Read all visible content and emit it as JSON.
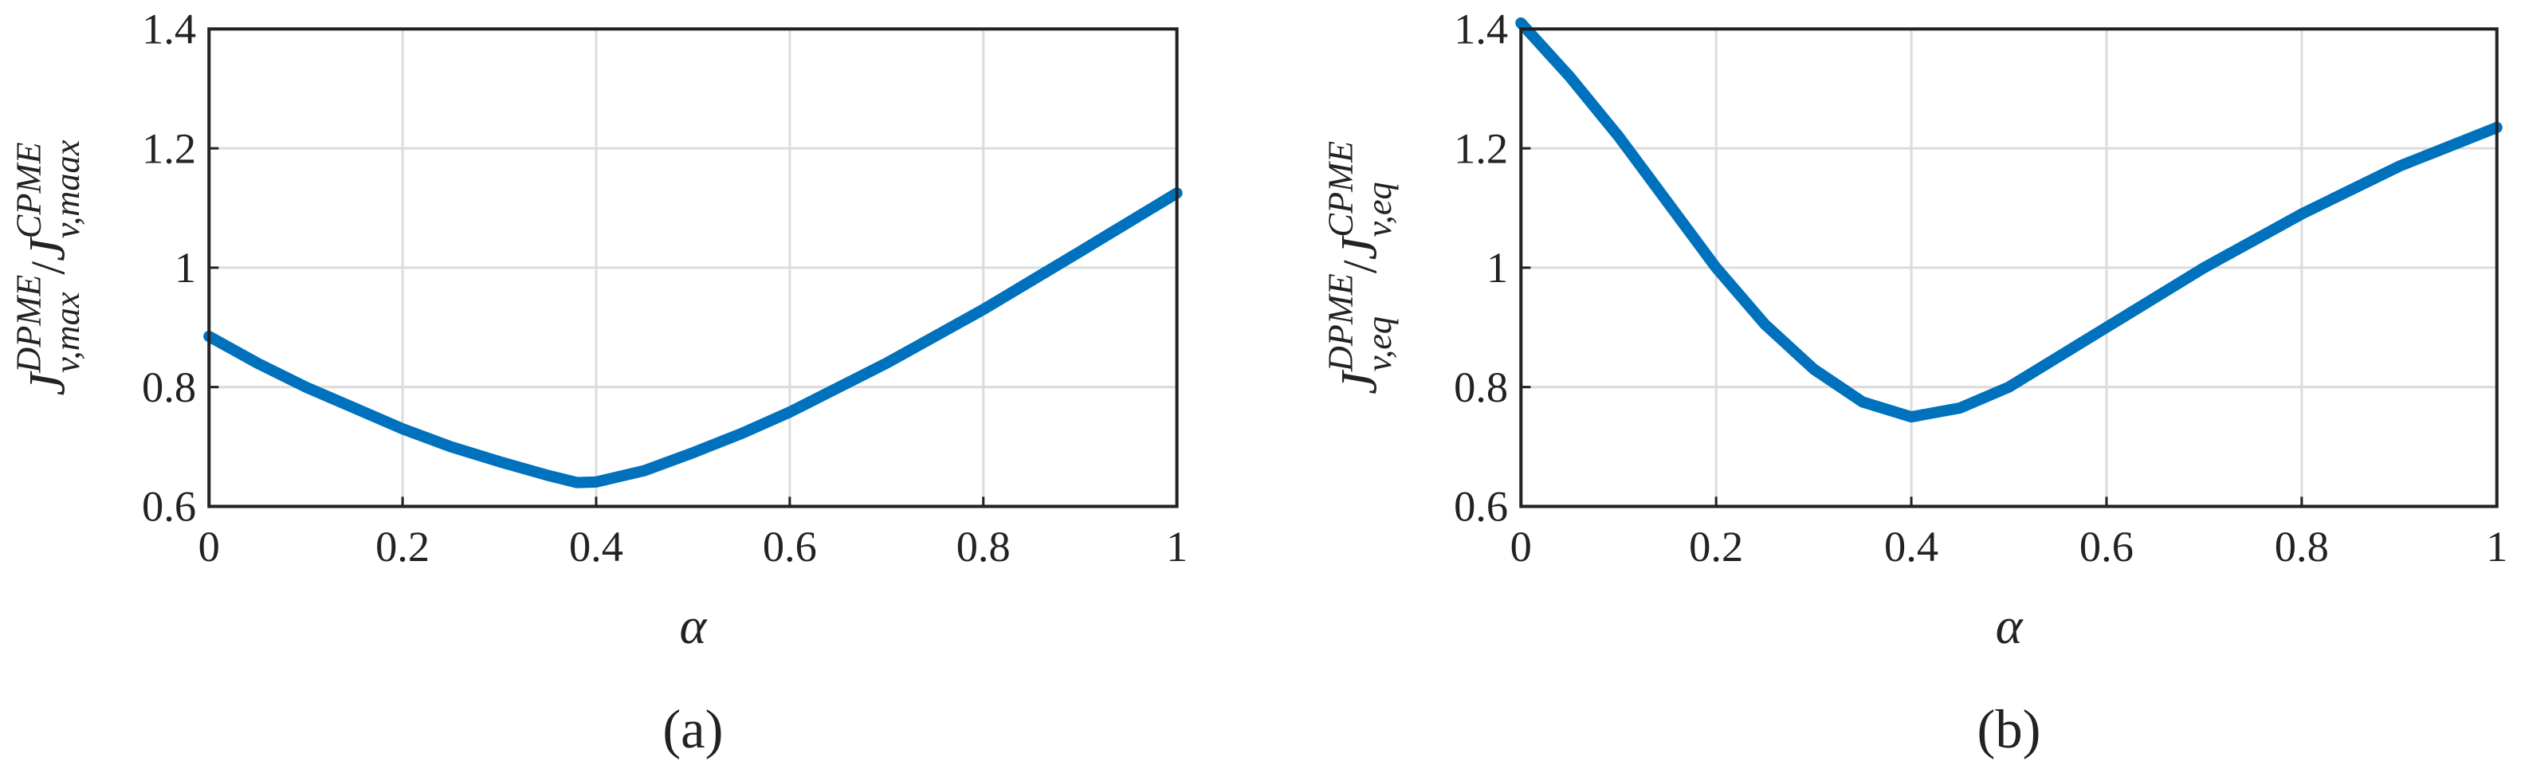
{
  "chart_data": [
    {
      "type": "line",
      "caption": "(a)",
      "xlabel": "α",
      "ylabel": [
        "J",
        "v,max",
        "DPME",
        "/",
        "J",
        "v,maax",
        "CPME"
      ],
      "x": [
        0,
        0.05,
        0.1,
        0.15,
        0.2,
        0.25,
        0.3,
        0.35,
        0.38,
        0.4,
        0.45,
        0.5,
        0.55,
        0.6,
        0.7,
        0.8,
        0.9,
        1
      ],
      "values": [
        0.885,
        0.84,
        0.8,
        0.765,
        0.73,
        0.7,
        0.675,
        0.652,
        0.64,
        0.641,
        0.66,
        0.69,
        0.722,
        0.758,
        0.84,
        0.93,
        1.027,
        1.125
      ],
      "color": "#0072bd",
      "xlim": [
        0,
        1
      ],
      "ylim": [
        0.6,
        1.4
      ],
      "xticks": [
        0,
        0.2,
        0.4,
        0.6,
        0.8,
        1
      ],
      "yticks": [
        0.6,
        0.8,
        1,
        1.2,
        1.4
      ],
      "grid": true
    },
    {
      "type": "line",
      "caption": "(b)",
      "xlabel": "α",
      "ylabel": [
        "J",
        "v,eq",
        "DPME",
        "/",
        "J",
        "v,eq",
        "CPME"
      ],
      "x": [
        0,
        0.05,
        0.1,
        0.15,
        0.2,
        0.25,
        0.3,
        0.35,
        0.4,
        0.45,
        0.5,
        0.55,
        0.6,
        0.7,
        0.8,
        0.9,
        1
      ],
      "values": [
        1.41,
        1.32,
        1.22,
        1.11,
        1.0,
        0.905,
        0.83,
        0.775,
        0.75,
        0.765,
        0.8,
        0.85,
        0.9,
        1.0,
        1.09,
        1.17,
        1.235
      ],
      "color": "#0072bd",
      "xlim": [
        0,
        1
      ],
      "ylim": [
        0.6,
        1.4
      ],
      "xticks": [
        0,
        0.2,
        0.4,
        0.6,
        0.8,
        1
      ],
      "yticks": [
        0.6,
        0.8,
        1,
        1.2,
        1.4
      ],
      "grid": true
    }
  ]
}
